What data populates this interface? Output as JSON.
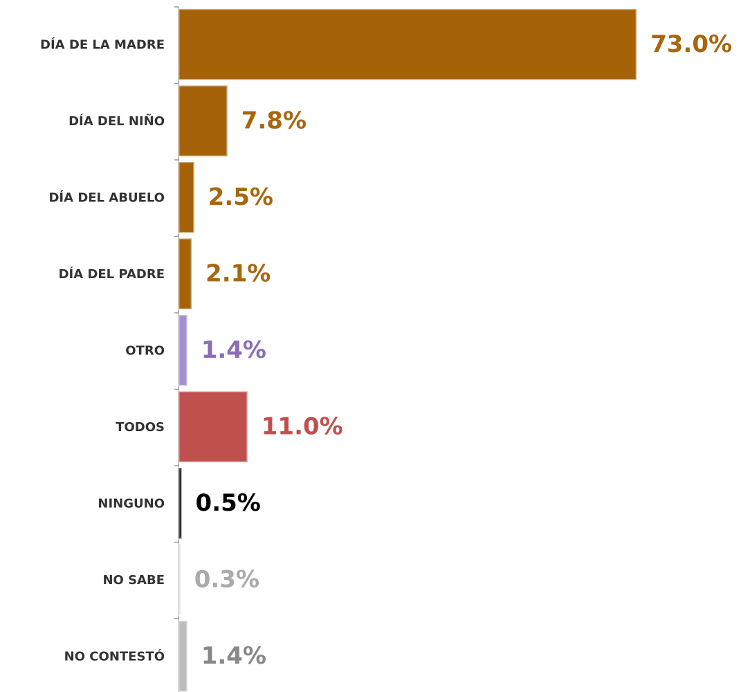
{
  "chart_data": {
    "type": "bar",
    "orientation": "horizontal",
    "categories": [
      "DÍA DE LA MADRE",
      "DÍA DEL NIÑO",
      "DÍA DEL ABUELO",
      "DÍA DEL PADRE",
      "OTRO",
      "TODOS",
      "NINGUNO",
      "NO SABE",
      "NO CONTESTÓ"
    ],
    "values": [
      73.0,
      7.8,
      2.5,
      2.1,
      1.4,
      11.0,
      0.5,
      0.3,
      1.4
    ],
    "value_labels": [
      "73.0%",
      "7.8%",
      "2.5%",
      "2.1%",
      "1.4%",
      "11.0%",
      "0.5%",
      "0.3%",
      "1.4%"
    ],
    "colors": [
      "#a56209",
      "#a56209",
      "#a56209",
      "#a56209",
      "#a58fd0",
      "#c0504d",
      "#111111",
      "#d0d0d0",
      "#bdbdbd"
    ],
    "label_colors": [
      "#a8660e",
      "#a8660e",
      "#a8660e",
      "#a8660e",
      "#8a6db5",
      "#c0504d",
      "#000000",
      "#aaaaaa",
      "#888888"
    ]
  }
}
